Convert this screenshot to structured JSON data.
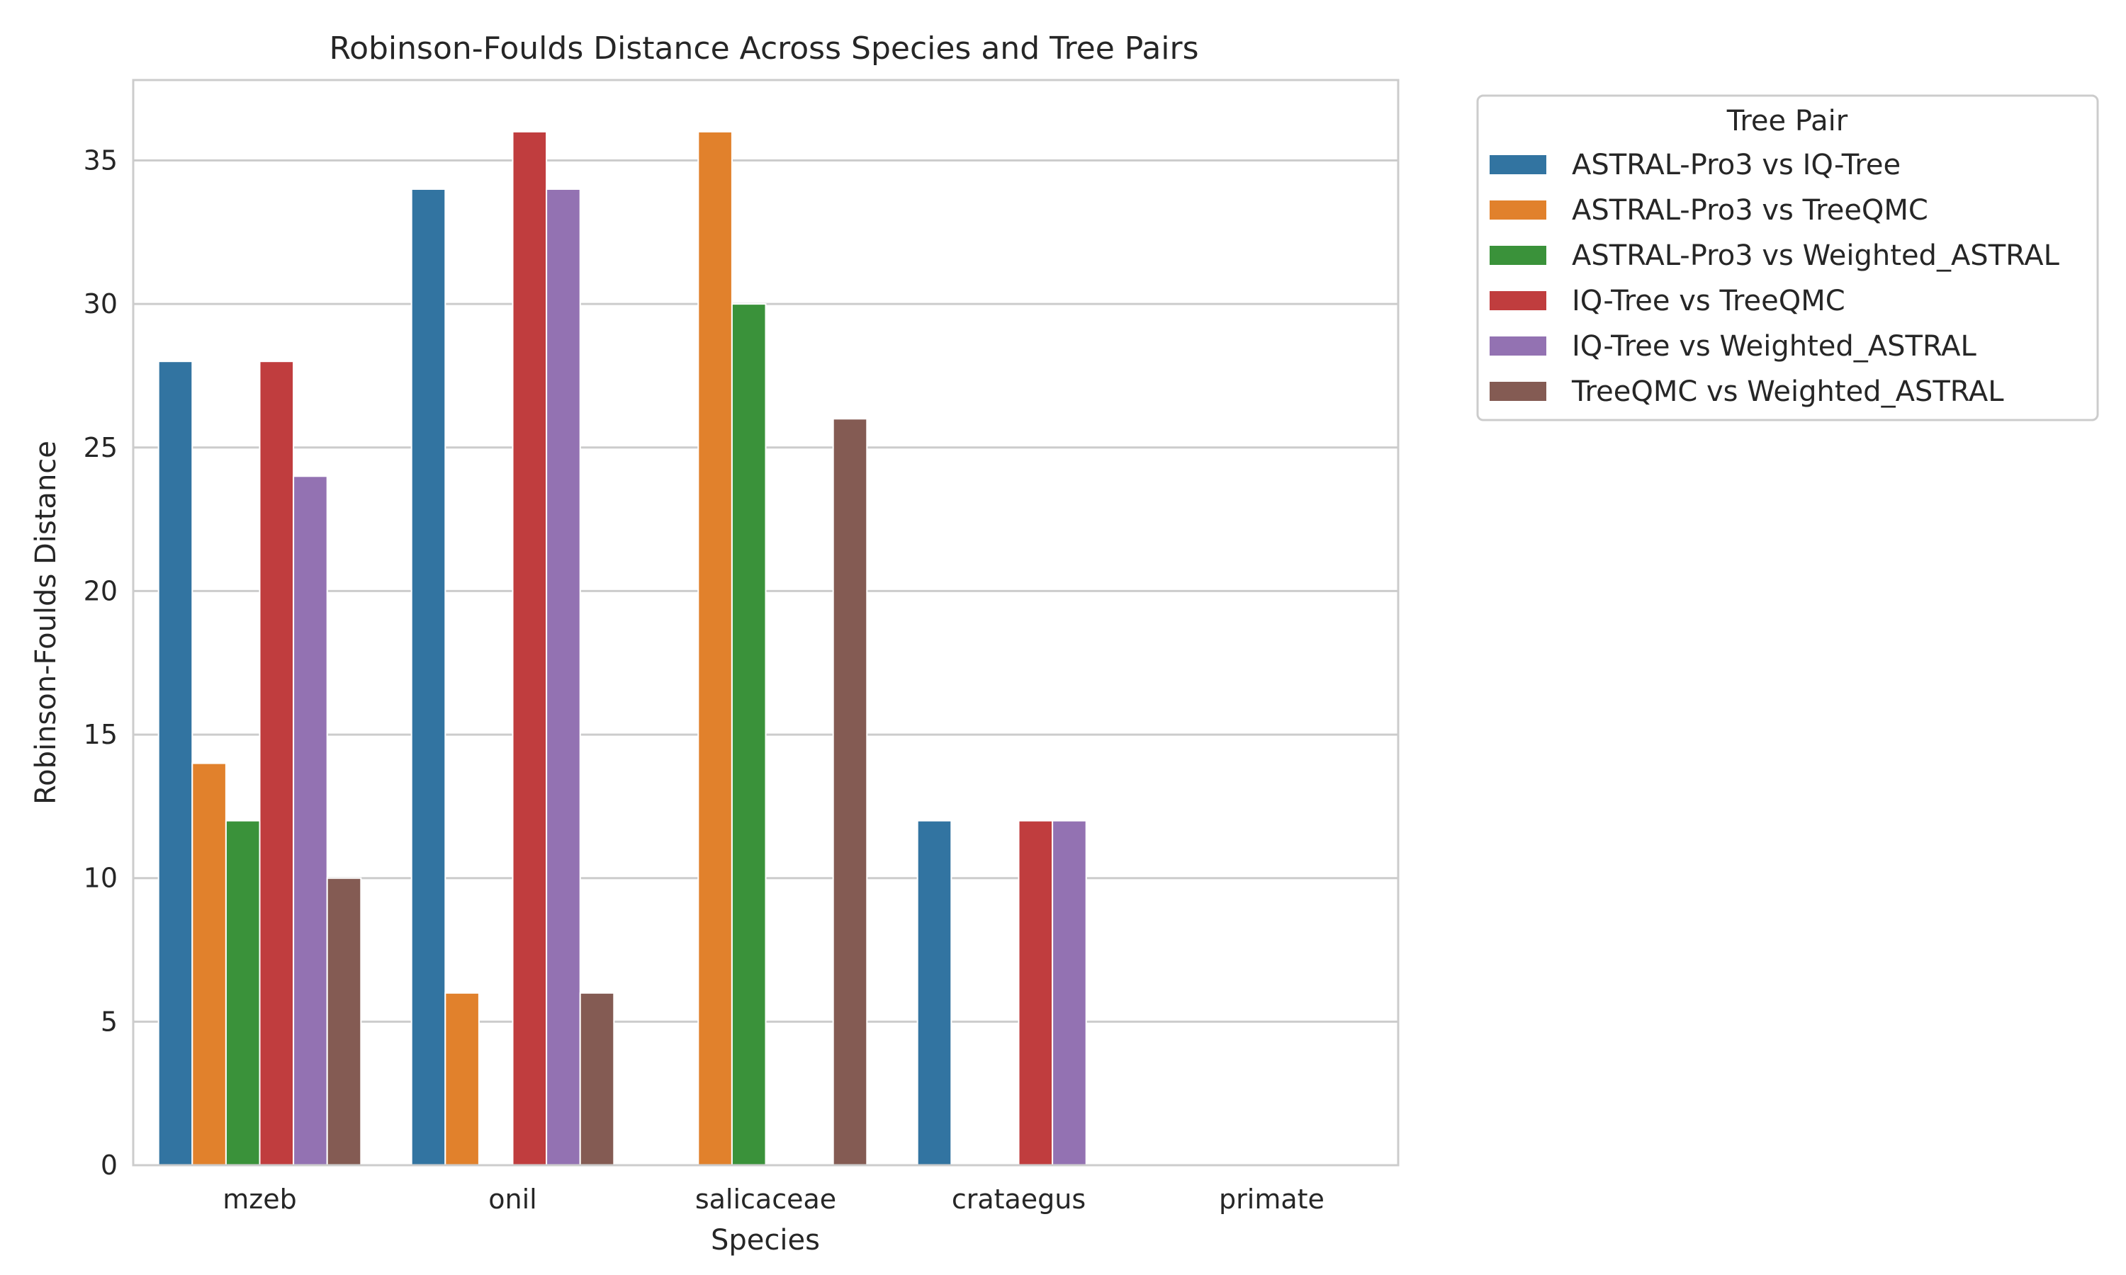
{
  "chart_data": {
    "type": "bar",
    "title": "Robinson-Foulds Distance Across Species and Tree Pairs",
    "xlabel": "Species",
    "ylabel": "Robinson-Foulds Distance",
    "ylim": [
      0,
      37.8
    ],
    "yticks": [
      0,
      5,
      10,
      15,
      20,
      25,
      30,
      35
    ],
    "grid": "horizontal",
    "legend_title": "Tree Pair",
    "legend_position": "outside-right",
    "categories": [
      "mzeb",
      "onil",
      "salicaceae",
      "crataegus",
      "primate"
    ],
    "series": [
      {
        "name": "ASTRAL-Pro3 vs IQ-Tree",
        "color": "#3274a1",
        "values": [
          28,
          34,
          null,
          12,
          null
        ]
      },
      {
        "name": "ASTRAL-Pro3 vs TreeQMC",
        "color": "#e1812c",
        "values": [
          14,
          6,
          36,
          null,
          null
        ]
      },
      {
        "name": "ASTRAL-Pro3 vs Weighted_ASTRAL",
        "color": "#3a923a",
        "values": [
          12,
          null,
          30,
          null,
          null
        ]
      },
      {
        "name": "IQ-Tree vs TreeQMC",
        "color": "#c03d3e",
        "values": [
          28,
          36,
          null,
          12,
          null
        ]
      },
      {
        "name": "IQ-Tree vs Weighted_ASTRAL",
        "color": "#9372b2",
        "values": [
          24,
          34,
          null,
          12,
          null
        ]
      },
      {
        "name": "TreeQMC vs Weighted_ASTRAL",
        "color": "#845b53",
        "values": [
          10,
          6,
          26,
          null,
          null
        ]
      }
    ]
  }
}
